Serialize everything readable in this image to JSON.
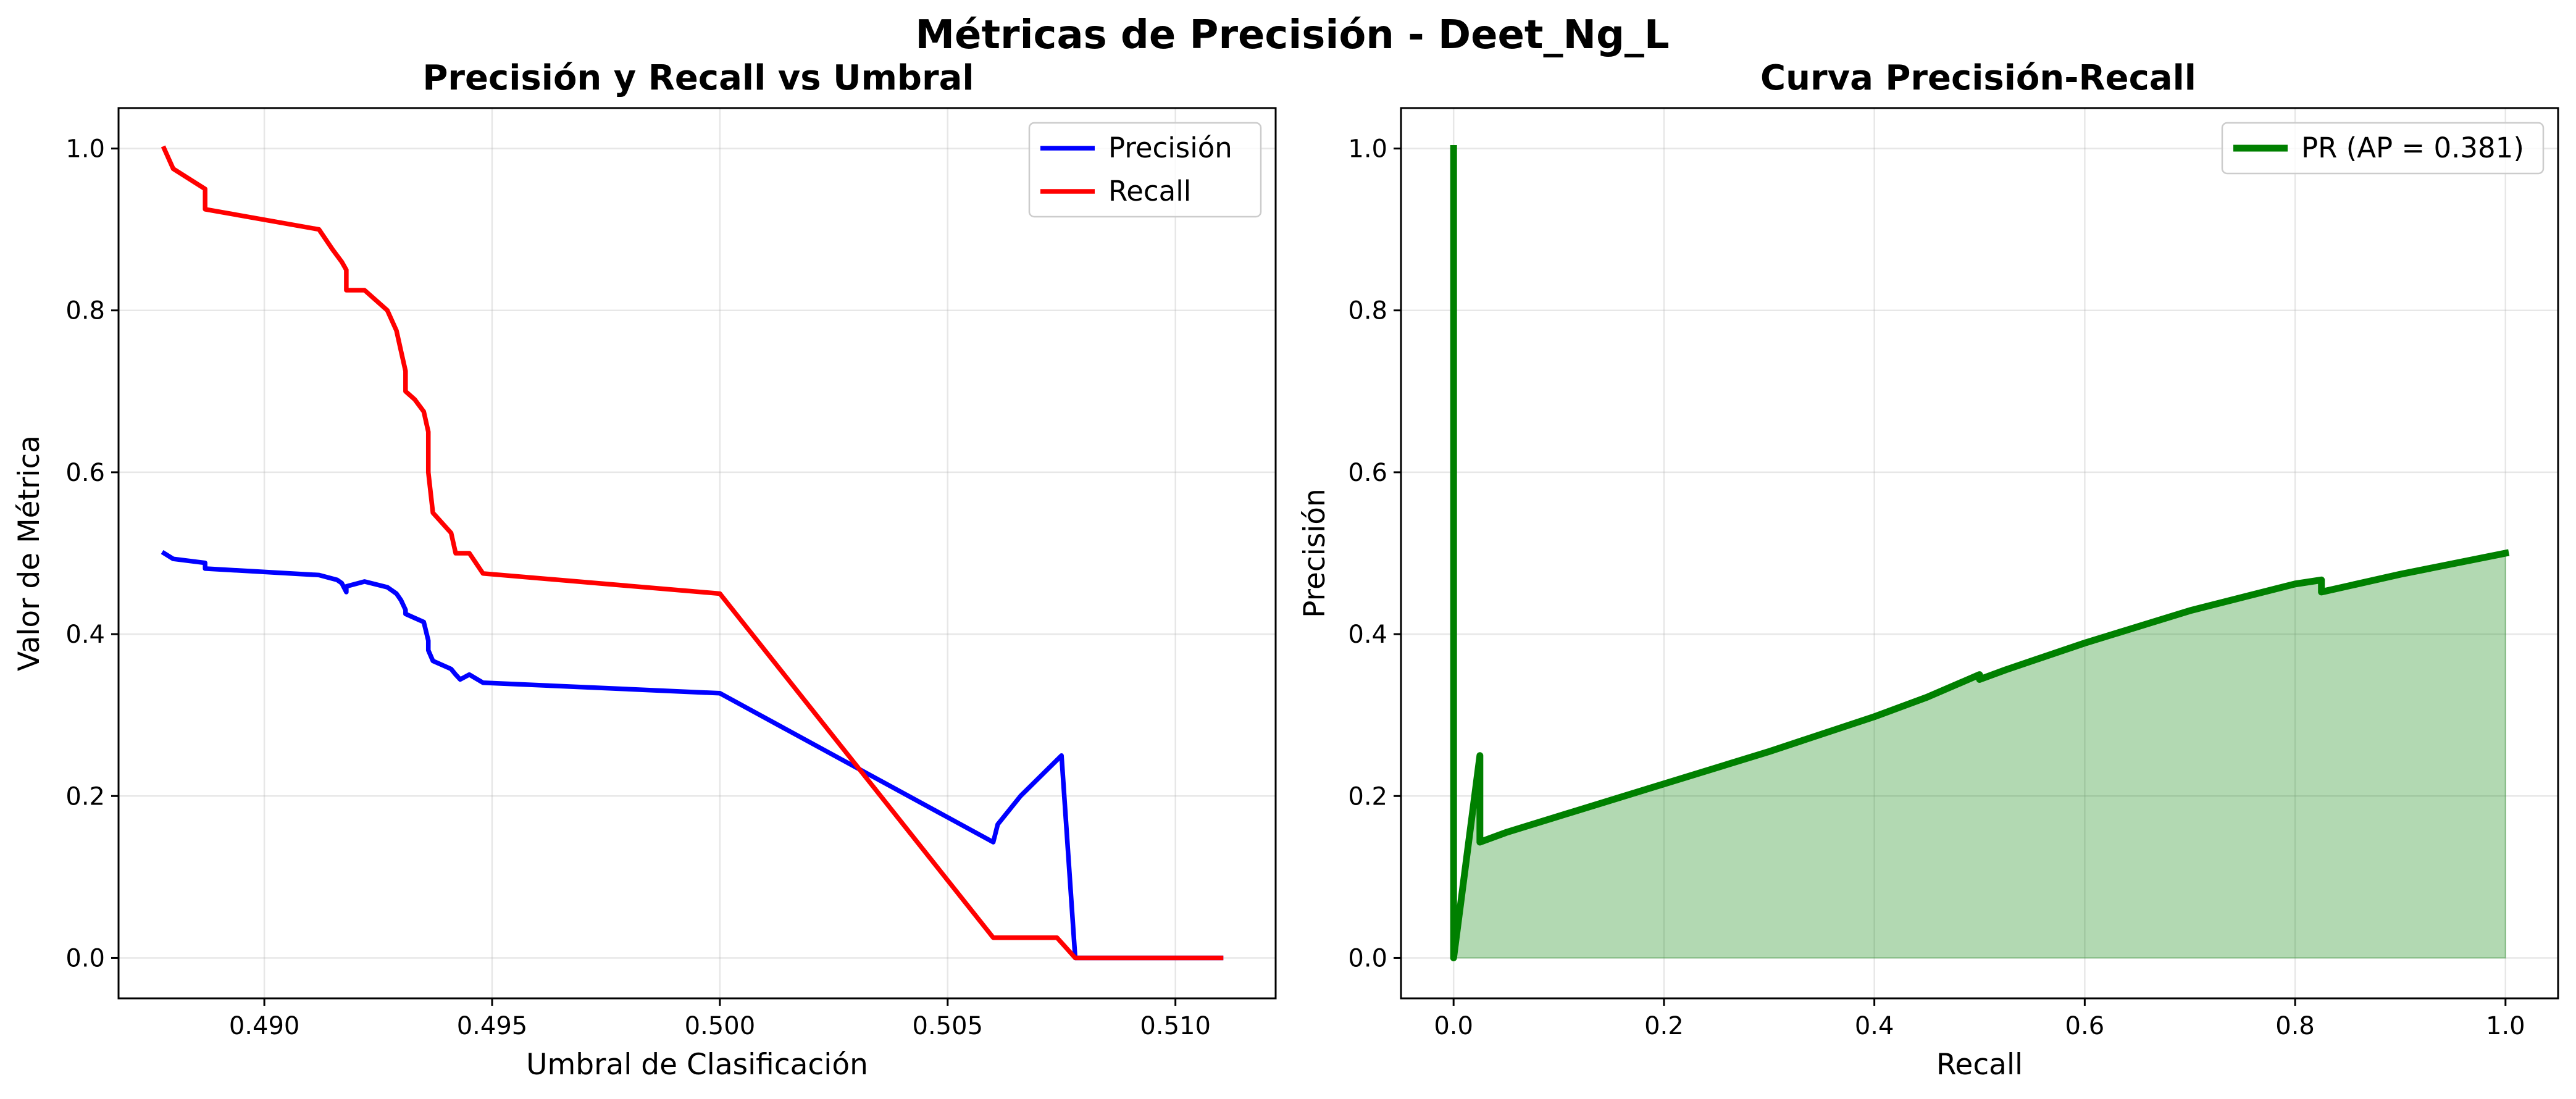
{
  "figure": {
    "suptitle": "Métricas de Precisión - Deet_Ng_L"
  },
  "chart_data": [
    {
      "type": "line",
      "title": "Precisión y Recall vs Umbral",
      "xlabel": "Umbral de Clasificación",
      "ylabel": "Valor de Métrica",
      "xlim": [
        0.4868,
        0.5122
      ],
      "ylim": [
        -0.05,
        1.05
      ],
      "xticks": [
        0.49,
        0.495,
        0.5,
        0.505,
        0.51
      ],
      "xtick_labels": [
        "0.490",
        "0.495",
        "0.500",
        "0.505",
        "0.510"
      ],
      "yticks": [
        0.0,
        0.2,
        0.4,
        0.6,
        0.8,
        1.0
      ],
      "ytick_labels": [
        "0.0",
        "0.2",
        "0.4",
        "0.6",
        "0.8",
        "1.0"
      ],
      "grid": true,
      "legend_position": "upper right",
      "series": [
        {
          "name": "Precisión",
          "color": "#0000ff",
          "x": [
            0.4878,
            0.488,
            0.4887,
            0.4887,
            0.4912,
            0.4916,
            0.4917,
            0.4918,
            0.4918,
            0.4922,
            0.4927,
            0.4929,
            0.493,
            0.4931,
            0.4931,
            0.4933,
            0.4935,
            0.4936,
            0.4936,
            0.4937,
            0.4941,
            0.4942,
            0.4943,
            0.4945,
            0.4948,
            0.5,
            0.506,
            0.5061,
            0.5066,
            0.5075,
            0.5078,
            0.511
          ],
          "y": [
            0.5,
            0.493,
            0.488,
            0.481,
            0.473,
            0.467,
            0.463,
            0.452,
            0.459,
            0.465,
            0.458,
            0.45,
            0.442,
            0.43,
            0.425,
            0.42,
            0.415,
            0.392,
            0.38,
            0.367,
            0.357,
            0.35,
            0.344,
            0.35,
            0.34,
            0.327,
            0.143,
            0.165,
            0.2,
            0.25,
            0.0,
            0.0
          ]
        },
        {
          "name": "Recall",
          "color": "#ff0000",
          "x": [
            0.4878,
            0.488,
            0.4887,
            0.4887,
            0.4912,
            0.4915,
            0.4917,
            0.4918,
            0.4918,
            0.4922,
            0.4927,
            0.4929,
            0.493,
            0.4931,
            0.4931,
            0.4933,
            0.4935,
            0.4936,
            0.4936,
            0.4937,
            0.4941,
            0.4942,
            0.4943,
            0.4945,
            0.4948,
            0.5,
            0.506,
            0.5074,
            0.5078,
            0.511
          ],
          "y": [
            1.0,
            0.975,
            0.95,
            0.925,
            0.9,
            0.875,
            0.86,
            0.85,
            0.825,
            0.825,
            0.8,
            0.775,
            0.75,
            0.725,
            0.7,
            0.69,
            0.675,
            0.65,
            0.6,
            0.55,
            0.525,
            0.5,
            0.5,
            0.5,
            0.475,
            0.45,
            0.025,
            0.025,
            0.0,
            0.0
          ]
        }
      ]
    },
    {
      "type": "area",
      "title": "Curva Precisión-Recall",
      "xlabel": "Recall",
      "ylabel": "Precisión",
      "xlim": [
        -0.05,
        1.05
      ],
      "ylim": [
        -0.05,
        1.05
      ],
      "xticks": [
        0.0,
        0.2,
        0.4,
        0.6,
        0.8,
        1.0
      ],
      "xtick_labels": [
        "0.0",
        "0.2",
        "0.4",
        "0.6",
        "0.8",
        "1.0"
      ],
      "yticks": [
        0.0,
        0.2,
        0.4,
        0.6,
        0.8,
        1.0
      ],
      "ytick_labels": [
        "0.0",
        "0.2",
        "0.4",
        "0.6",
        "0.8",
        "1.0"
      ],
      "grid": true,
      "legend_position": "upper right",
      "fill_color": "#008000",
      "series": [
        {
          "name": "PR (AP = 0.381)",
          "color": "#008000",
          "x": [
            0.0,
            0.0,
            0.0,
            0.025,
            0.025,
            0.05,
            0.1,
            0.2,
            0.3,
            0.4,
            0.45,
            0.5,
            0.5,
            0.525,
            0.6,
            0.7,
            0.8,
            0.825,
            0.825,
            0.9,
            1.0
          ],
          "y": [
            1.0,
            0.0,
            0.0,
            0.25,
            0.143,
            0.155,
            0.175,
            0.215,
            0.255,
            0.298,
            0.322,
            0.35,
            0.344,
            0.356,
            0.389,
            0.429,
            0.462,
            0.467,
            0.452,
            0.474,
            0.5
          ]
        }
      ]
    }
  ]
}
